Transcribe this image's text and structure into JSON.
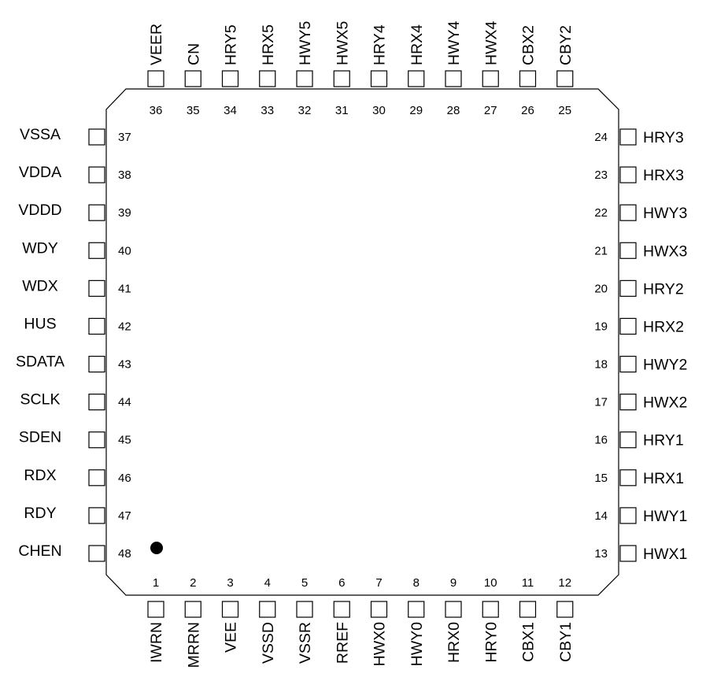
{
  "package": {
    "pin1_marker": "filled-circle",
    "colors": {
      "line": "#000000",
      "background": "#ffffff"
    }
  },
  "pins": {
    "bottom": [
      {
        "number": "1",
        "name": "IWRN"
      },
      {
        "number": "2",
        "name": "MRRN"
      },
      {
        "number": "3",
        "name": "VEE"
      },
      {
        "number": "4",
        "name": "VSSD"
      },
      {
        "number": "5",
        "name": "VSSR"
      },
      {
        "number": "6",
        "name": "RREF"
      },
      {
        "number": "7",
        "name": "HWX0"
      },
      {
        "number": "8",
        "name": "HWY0"
      },
      {
        "number": "9",
        "name": "HRX0"
      },
      {
        "number": "10",
        "name": "HRY0"
      },
      {
        "number": "11",
        "name": "CBX1"
      },
      {
        "number": "12",
        "name": "CBY1"
      }
    ],
    "right": [
      {
        "number": "13",
        "name": "HWX1"
      },
      {
        "number": "14",
        "name": "HWY1"
      },
      {
        "number": "15",
        "name": "HRX1"
      },
      {
        "number": "16",
        "name": "HRY1"
      },
      {
        "number": "17",
        "name": "HWX2"
      },
      {
        "number": "18",
        "name": "HWY2"
      },
      {
        "number": "19",
        "name": "HRX2"
      },
      {
        "number": "20",
        "name": "HRY2"
      },
      {
        "number": "21",
        "name": "HWX3"
      },
      {
        "number": "22",
        "name": "HWY3"
      },
      {
        "number": "23",
        "name": "HRX3"
      },
      {
        "number": "24",
        "name": "HRY3"
      }
    ],
    "top": [
      {
        "number": "25",
        "name": "CBY2"
      },
      {
        "number": "26",
        "name": "CBX2"
      },
      {
        "number": "27",
        "name": "HWX4"
      },
      {
        "number": "28",
        "name": "HWY4"
      },
      {
        "number": "29",
        "name": "HRX4"
      },
      {
        "number": "30",
        "name": "HRY4"
      },
      {
        "number": "31",
        "name": "HWX5"
      },
      {
        "number": "32",
        "name": "HWY5"
      },
      {
        "number": "33",
        "name": "HRX5"
      },
      {
        "number": "34",
        "name": "HRY5"
      },
      {
        "number": "35",
        "name": "CN"
      },
      {
        "number": "36",
        "name": "VEER"
      }
    ],
    "left": [
      {
        "number": "37",
        "name": "VSSA"
      },
      {
        "number": "38",
        "name": "VDDA"
      },
      {
        "number": "39",
        "name": "VDDD"
      },
      {
        "number": "40",
        "name": "WDY"
      },
      {
        "number": "41",
        "name": "WDX"
      },
      {
        "number": "42",
        "name": "HUS"
      },
      {
        "number": "43",
        "name": "SDATA"
      },
      {
        "number": "44",
        "name": "SCLK"
      },
      {
        "number": "45",
        "name": "SDEN"
      },
      {
        "number": "46",
        "name": "RDX"
      },
      {
        "number": "47",
        "name": "RDY"
      },
      {
        "number": "48",
        "name": "CHEN"
      }
    ]
  }
}
